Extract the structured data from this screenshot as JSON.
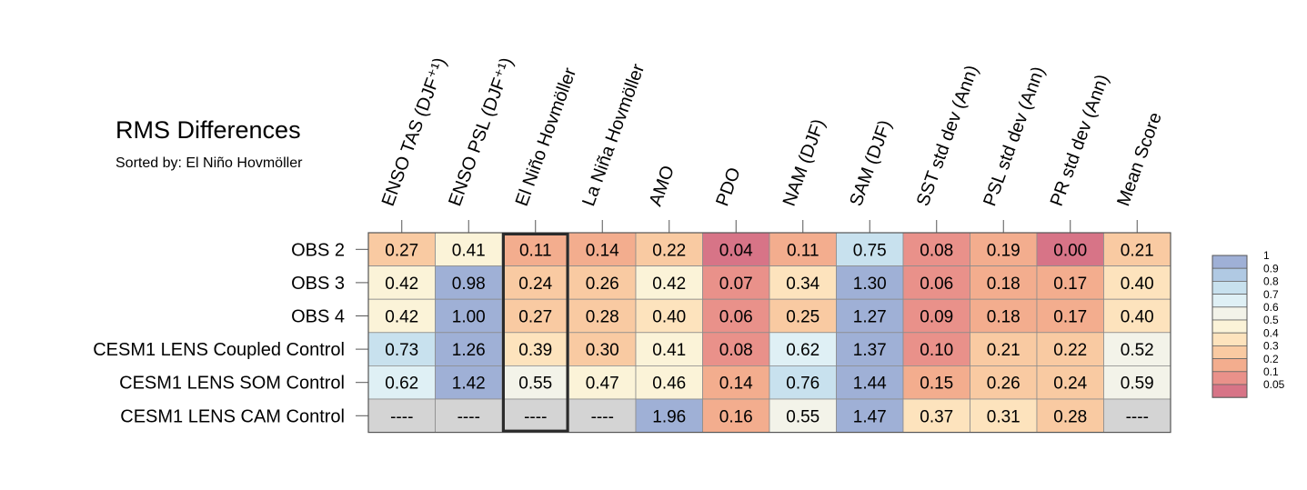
{
  "chart_data": {
    "type": "heatmap",
    "title": "RMS Differences",
    "subtitle": "Sorted by: El Niño Hovmöller",
    "columns": [
      "ENSO TAS (DJF⁺¹)",
      "ENSO PSL (DJF⁺¹)",
      "El Niño Hovmöller",
      "La Niña Hovmöller",
      "AMO",
      "PDO",
      "NAM (DJF)",
      "SAM (DJF)",
      "SST std dev (Ann)",
      "PSL std dev (Ann)",
      "PR std dev (Ann)",
      "Mean Score"
    ],
    "rows": [
      "OBS 2",
      "OBS 3",
      "OBS 4",
      "CESM1 LENS Coupled Control",
      "CESM1 LENS SOM Control",
      "CESM1 LENS CAM Control"
    ],
    "values": [
      [
        0.27,
        0.41,
        0.11,
        0.14,
        0.22,
        0.04,
        0.11,
        0.75,
        0.08,
        0.19,
        0.0,
        0.21
      ],
      [
        0.42,
        0.98,
        0.24,
        0.26,
        0.42,
        0.07,
        0.34,
        1.3,
        0.06,
        0.18,
        0.17,
        0.4
      ],
      [
        0.42,
        1.0,
        0.27,
        0.28,
        0.4,
        0.06,
        0.25,
        1.27,
        0.09,
        0.18,
        0.17,
        0.4
      ],
      [
        0.73,
        1.26,
        0.39,
        0.3,
        0.41,
        0.08,
        0.62,
        1.37,
        0.1,
        0.21,
        0.22,
        0.52
      ],
      [
        0.62,
        1.42,
        0.55,
        0.47,
        0.46,
        0.14,
        0.76,
        1.44,
        0.15,
        0.26,
        0.24,
        0.59
      ],
      [
        null,
        null,
        null,
        null,
        1.96,
        0.16,
        0.55,
        1.47,
        0.37,
        0.31,
        0.28,
        null
      ]
    ],
    "missing_label": "----",
    "highlighted_column": "El Niño Hovmöller",
    "colorbar": {
      "levels": [
        "1",
        "0.9",
        "0.8",
        "0.7",
        "0.6",
        "0.5",
        "0.4",
        "0.3",
        "0.2",
        "0.1",
        "0.05"
      ],
      "colors": [
        "#9fb0d6",
        "#b0c9e3",
        "#c8e1ee",
        "#dff0f5",
        "#f3f3e9",
        "#fbf3d8",
        "#fde3bd",
        "#f9caa2",
        "#f3ad8e",
        "#e9918a",
        "#d77487"
      ]
    },
    "missing_color": "#d4d4d4"
  }
}
